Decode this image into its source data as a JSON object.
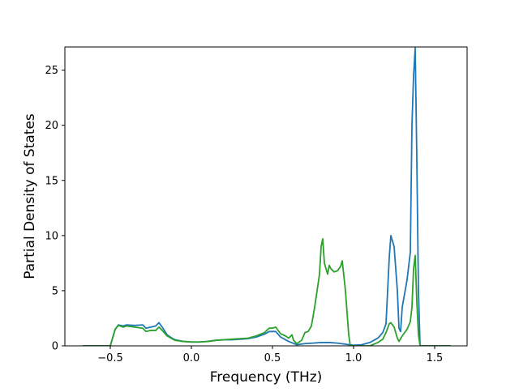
{
  "chart_data": {
    "type": "line",
    "title": "",
    "xlabel": "Frequency (THz)",
    "ylabel": "Partial Density of States",
    "xlim": [
      -0.78,
      1.7
    ],
    "ylim": [
      0,
      27.1
    ],
    "xticks": [
      -0.5,
      0.0,
      0.5,
      1.0,
      1.5
    ],
    "xtick_labels": [
      "−0.5",
      "0.0",
      "0.5",
      "1.0",
      "1.5"
    ],
    "yticks": [
      0,
      5,
      10,
      15,
      20,
      25
    ],
    "ytick_labels": [
      "0",
      "5",
      "10",
      "15",
      "20",
      "25"
    ],
    "grid": false,
    "legend": "none",
    "series": [
      {
        "color": "#1f77b4",
        "points": [
          [
            -0.67,
            0
          ],
          [
            -0.5,
            0
          ],
          [
            -0.47,
            1.5
          ],
          [
            -0.45,
            1.9
          ],
          [
            -0.42,
            1.8
          ],
          [
            -0.4,
            1.9
          ],
          [
            -0.35,
            1.85
          ],
          [
            -0.3,
            1.9
          ],
          [
            -0.28,
            1.6
          ],
          [
            -0.25,
            1.7
          ],
          [
            -0.22,
            1.8
          ],
          [
            -0.2,
            2.1
          ],
          [
            -0.18,
            1.7
          ],
          [
            -0.15,
            1.0
          ],
          [
            -0.12,
            0.7
          ],
          [
            -0.1,
            0.55
          ],
          [
            -0.05,
            0.4
          ],
          [
            0.0,
            0.35
          ],
          [
            0.05,
            0.35
          ],
          [
            0.1,
            0.4
          ],
          [
            0.15,
            0.5
          ],
          [
            0.2,
            0.55
          ],
          [
            0.25,
            0.55
          ],
          [
            0.3,
            0.6
          ],
          [
            0.35,
            0.65
          ],
          [
            0.4,
            0.8
          ],
          [
            0.45,
            1.05
          ],
          [
            0.48,
            1.3
          ],
          [
            0.52,
            1.3
          ],
          [
            0.55,
            0.8
          ],
          [
            0.6,
            0.4
          ],
          [
            0.65,
            0.1
          ],
          [
            0.7,
            0.2
          ],
          [
            0.75,
            0.25
          ],
          [
            0.8,
            0.3
          ],
          [
            0.85,
            0.3
          ],
          [
            0.9,
            0.25
          ],
          [
            0.95,
            0.15
          ],
          [
            1.0,
            0.05
          ],
          [
            1.05,
            0.1
          ],
          [
            1.1,
            0.3
          ],
          [
            1.15,
            0.7
          ],
          [
            1.18,
            1.2
          ],
          [
            1.2,
            2.0
          ],
          [
            1.22,
            8.0
          ],
          [
            1.23,
            10.0
          ],
          [
            1.25,
            9.0
          ],
          [
            1.27,
            5.0
          ],
          [
            1.28,
            1.6
          ],
          [
            1.29,
            1.3
          ],
          [
            1.3,
            3.5
          ],
          [
            1.33,
            6.0
          ],
          [
            1.35,
            8.5
          ],
          [
            1.36,
            20.0
          ],
          [
            1.37,
            24.5
          ],
          [
            1.38,
            27.0
          ],
          [
            1.39,
            17.0
          ],
          [
            1.4,
            5.0
          ],
          [
            1.41,
            0
          ],
          [
            1.6,
            0
          ]
        ]
      },
      {
        "color": "#2ca02c",
        "points": [
          [
            -0.67,
            0
          ],
          [
            -0.5,
            0
          ],
          [
            -0.47,
            1.5
          ],
          [
            -0.45,
            1.85
          ],
          [
            -0.42,
            1.7
          ],
          [
            -0.4,
            1.8
          ],
          [
            -0.35,
            1.7
          ],
          [
            -0.3,
            1.6
          ],
          [
            -0.28,
            1.3
          ],
          [
            -0.25,
            1.4
          ],
          [
            -0.22,
            1.4
          ],
          [
            -0.2,
            1.7
          ],
          [
            -0.18,
            1.4
          ],
          [
            -0.15,
            0.9
          ],
          [
            -0.12,
            0.65
          ],
          [
            -0.1,
            0.5
          ],
          [
            -0.05,
            0.4
          ],
          [
            0.0,
            0.35
          ],
          [
            0.05,
            0.35
          ],
          [
            0.1,
            0.4
          ],
          [
            0.15,
            0.5
          ],
          [
            0.2,
            0.55
          ],
          [
            0.25,
            0.6
          ],
          [
            0.3,
            0.65
          ],
          [
            0.35,
            0.7
          ],
          [
            0.4,
            0.9
          ],
          [
            0.45,
            1.2
          ],
          [
            0.48,
            1.6
          ],
          [
            0.5,
            1.6
          ],
          [
            0.52,
            1.7
          ],
          [
            0.55,
            1.1
          ],
          [
            0.58,
            0.9
          ],
          [
            0.6,
            0.7
          ],
          [
            0.62,
            1.0
          ],
          [
            0.63,
            0.5
          ],
          [
            0.65,
            0.2
          ],
          [
            0.68,
            0.5
          ],
          [
            0.7,
            1.2
          ],
          [
            0.72,
            1.3
          ],
          [
            0.74,
            1.8
          ],
          [
            0.76,
            3.5
          ],
          [
            0.78,
            5.5
          ],
          [
            0.79,
            6.5
          ],
          [
            0.8,
            9.0
          ],
          [
            0.81,
            9.7
          ],
          [
            0.82,
            7.5
          ],
          [
            0.84,
            6.5
          ],
          [
            0.85,
            7.3
          ],
          [
            0.86,
            7.0
          ],
          [
            0.88,
            6.7
          ],
          [
            0.9,
            6.8
          ],
          [
            0.92,
            7.2
          ],
          [
            0.93,
            7.7
          ],
          [
            0.95,
            5.0
          ],
          [
            0.97,
            1.0
          ],
          [
            0.98,
            0
          ],
          [
            1.1,
            0
          ],
          [
            1.15,
            0.3
          ],
          [
            1.18,
            0.6
          ],
          [
            1.2,
            1.2
          ],
          [
            1.22,
            2.0
          ],
          [
            1.23,
            2.1
          ],
          [
            1.25,
            1.7
          ],
          [
            1.27,
            0.7
          ],
          [
            1.28,
            0.4
          ],
          [
            1.3,
            0.9
          ],
          [
            1.33,
            1.5
          ],
          [
            1.35,
            2.2
          ],
          [
            1.36,
            3.5
          ],
          [
            1.37,
            7.0
          ],
          [
            1.38,
            8.2
          ],
          [
            1.39,
            4.0
          ],
          [
            1.4,
            1.0
          ],
          [
            1.41,
            0
          ],
          [
            1.6,
            0
          ]
        ]
      }
    ]
  }
}
